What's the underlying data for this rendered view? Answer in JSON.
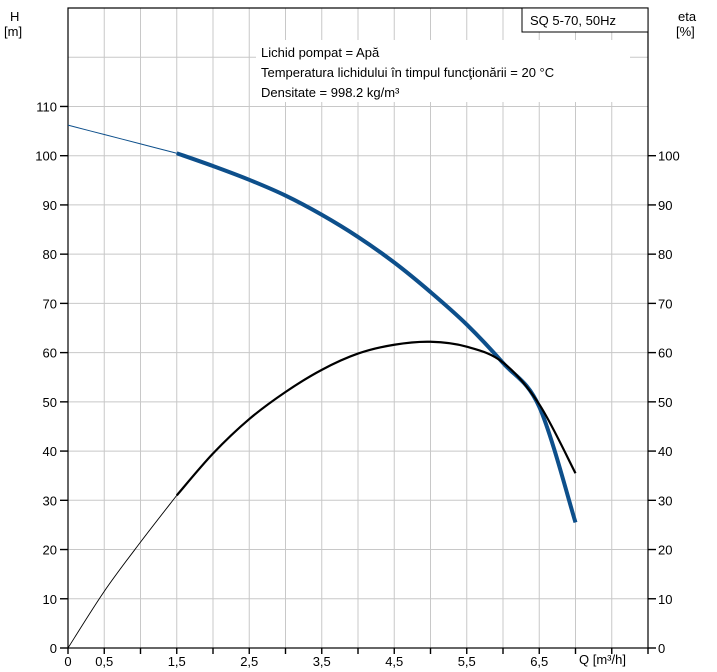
{
  "chart_data": {
    "type": "line",
    "title": "SQ 5-70, 50Hz",
    "annotations": [
      "Lichid pompat = Apă",
      "Temperatura lichidului în timpul funcţionării = 20 °C",
      "Densitate = 998.2 kg/m³"
    ],
    "xlabel": "Q [m³/h]",
    "ylabel_left": [
      "H",
      "[m]"
    ],
    "ylabel_right": [
      "eta",
      "[%]"
    ],
    "xlim": [
      0,
      8
    ],
    "ylim": [
      0,
      130
    ],
    "x_tick_labels": [
      {
        "value": 0,
        "label": "0"
      },
      {
        "value": 0.5,
        "label": "0,5"
      },
      {
        "value": 1.5,
        "label": "1,5"
      },
      {
        "value": 2.5,
        "label": "2,5"
      },
      {
        "value": 3.5,
        "label": "3,5"
      },
      {
        "value": 4.5,
        "label": "4,5"
      },
      {
        "value": 5.5,
        "label": "5,5"
      },
      {
        "value": 6.5,
        "label": "6,5"
      }
    ],
    "y_left_ticks": [
      0,
      10,
      20,
      30,
      40,
      50,
      60,
      70,
      80,
      90,
      100,
      110
    ],
    "y_right_ticks": [
      0,
      10,
      20,
      30,
      40,
      50,
      60,
      70,
      80,
      90,
      100
    ],
    "grid": true,
    "series": [
      {
        "color": "#0d4f8b",
        "x": [
          0,
          0.5,
          1.0,
          1.5,
          2.0,
          2.5,
          3.0,
          3.5,
          4.0,
          4.5,
          5.0,
          5.5,
          6.0,
          6.5,
          7.0
        ],
        "values": [
          106.2,
          104.3,
          102.4,
          100.5,
          97.9,
          95.1,
          91.9,
          88.0,
          83.5,
          78.3,
          72.3,
          65.7,
          57.9,
          49.0,
          25.5
        ],
        "thin_until_x": 1.5
      },
      {
        "color": "#000000",
        "x": [
          0,
          0.5,
          1.0,
          1.5,
          2.0,
          2.5,
          3.0,
          3.5,
          4.0,
          4.5,
          5.0,
          5.5,
          6.0,
          6.5,
          7.0
        ],
        "values": [
          0,
          11.5,
          21.5,
          31,
          39.5,
          46.5,
          52,
          56.5,
          59.8,
          61.6,
          62.2,
          61.2,
          58.0,
          49.5,
          35.5
        ],
        "thin_until_x": 1.5
      }
    ]
  }
}
